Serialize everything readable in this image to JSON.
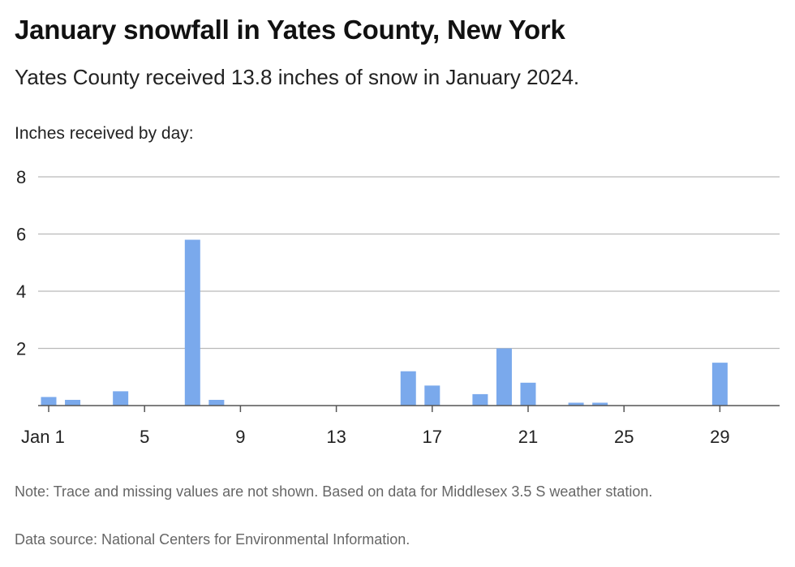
{
  "header": {
    "title": "January snowfall in Yates County, New York",
    "subtitle": "Yates County received 13.8 inches of snow in January 2024.",
    "axis_caption": "Inches received by day:"
  },
  "footer": {
    "note": "Note: Trace and missing values are not shown. Based on data for Middlesex 3.5 S weather station.",
    "source": "Data source: National Centers for Environmental Information."
  },
  "colors": {
    "bar": "#7aa9ec",
    "grid": "#b9b9b9",
    "axis": "#555555"
  },
  "chart_data": {
    "type": "bar",
    "title": "January snowfall in Yates County, New York",
    "ylabel": "Inches received by day:",
    "ylim": [
      0,
      8
    ],
    "yticks": [
      2,
      4,
      6,
      8
    ],
    "x_tick_days": [
      1,
      5,
      9,
      13,
      17,
      21,
      25,
      29
    ],
    "x_tick_labels": [
      "Jan 1",
      "5",
      "9",
      "13",
      "17",
      "21",
      "25",
      "29"
    ],
    "days": [
      1,
      2,
      4,
      7,
      8,
      16,
      17,
      19,
      20,
      21,
      23,
      24,
      29
    ],
    "values": [
      0.3,
      0.2,
      0.5,
      5.8,
      0.2,
      1.2,
      0.7,
      0.4,
      2.0,
      0.8,
      0.1,
      0.1,
      1.5
    ],
    "grid": true
  }
}
